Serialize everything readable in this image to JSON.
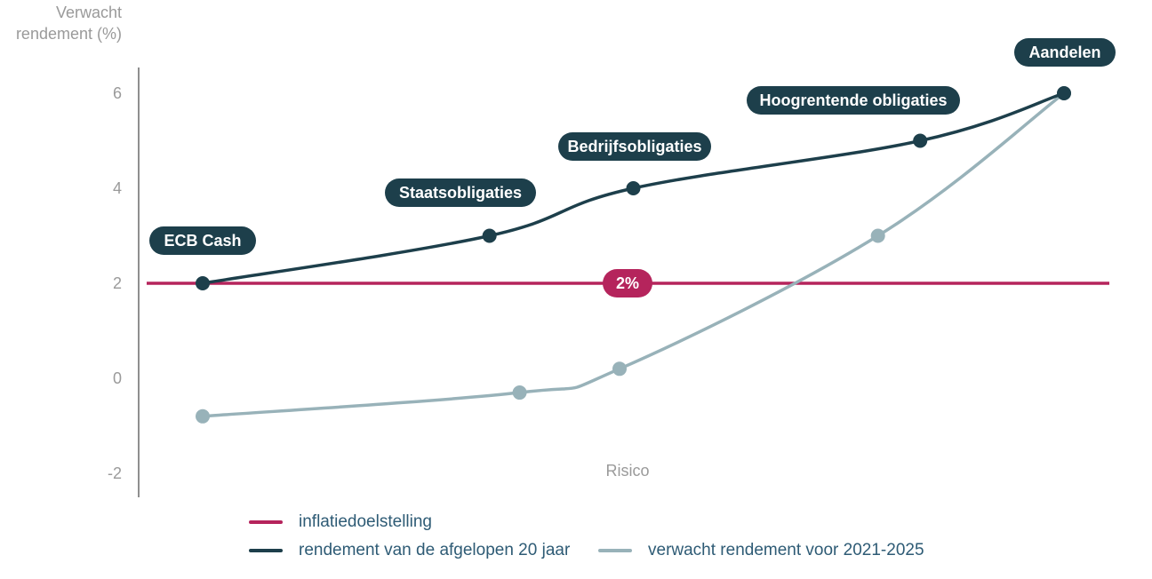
{
  "chart_data": {
    "type": "line",
    "ylabel": [
      "Verwacht",
      "rendement (%)"
    ],
    "xlabel": "Risico",
    "ylim": [
      -2.4,
      6.5
    ],
    "yticks": [
      6,
      4,
      2,
      0,
      -2
    ],
    "inflation_target": {
      "value": 2,
      "label": "2%",
      "color": "#b5245c"
    },
    "categories": [
      "ECB Cash",
      "Staatsobligaties",
      "Bedrijfsobligaties",
      "Hoogrentende obligaties",
      "Aandelen"
    ],
    "series": [
      {
        "name": "rendement van de afgelopen 20 jaar",
        "color": "#1d3f4b",
        "points": [
          {
            "x": 0.0,
            "y": 2.0
          },
          {
            "x": 0.333,
            "y": 3.0
          },
          {
            "x": 0.5,
            "y": 4.0
          },
          {
            "x": 0.833,
            "y": 5.0
          },
          {
            "x": 1.0,
            "y": 6.0
          }
        ]
      },
      {
        "name": "verwacht rendement voor 2021-2025",
        "color": "#98b2b9",
        "points": [
          {
            "x": 0.0,
            "y": -0.8
          },
          {
            "x": 0.368,
            "y": -0.3
          },
          {
            "x": 0.484,
            "y": 0.2
          },
          {
            "x": 0.784,
            "y": 3.0
          },
          {
            "x": 1.0,
            "y": 6.0
          }
        ]
      }
    ]
  },
  "legend": {
    "inflation": "inflatiedoelstelling",
    "past": "rendement van de afgelopen 20 jaar",
    "expected": "verwacht rendement voor 2021-2025"
  }
}
